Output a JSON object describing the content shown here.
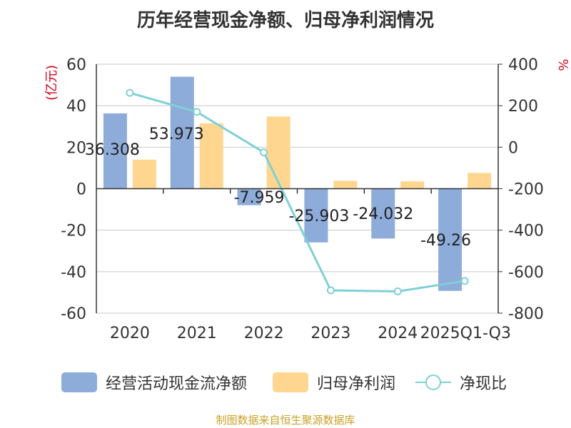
{
  "colors": {
    "bar1": "#8eacd9",
    "bar2": "#fed68f",
    "line": "#7fd0d6",
    "ytitle": "#d0021b",
    "text": "#333333",
    "grid": "#c8c8c8",
    "source": "#c9a227"
  },
  "source_text": "制图数据来自恒生聚源数据库",
  "chart_data": {
    "type": "bar+line",
    "title": "历年经营现金净额、归母净利润情况",
    "categories": [
      "2020",
      "2021",
      "2022",
      "2023",
      "2024",
      "2025Q1-Q3"
    ],
    "y_left": {
      "label": "(亿元)",
      "ylim": [
        -60,
        60
      ],
      "ticks": [
        60,
        40,
        20,
        0,
        -20,
        -40,
        -60
      ]
    },
    "y_right": {
      "label": "%",
      "ylim": [
        -800,
        400
      ],
      "ticks": [
        400,
        200,
        0,
        -200,
        -400,
        -600,
        -800
      ]
    },
    "series": [
      {
        "name": "经营活动现金流净额",
        "kind": "bar",
        "axis": "left",
        "values": [
          36.308,
          53.973,
          -7.959,
          -25.903,
          -24.032,
          -49.26
        ],
        "labels": [
          "36.308",
          "53.973",
          "-7.959",
          "-25.903",
          "-24.032",
          "-49.26"
        ]
      },
      {
        "name": "归母净利润",
        "kind": "bar",
        "axis": "left",
        "values": [
          14.0,
          31.5,
          34.8,
          3.8,
          3.5,
          7.6
        ]
      },
      {
        "name": "净现比",
        "kind": "line",
        "axis": "right",
        "values": [
          262,
          170,
          -25,
          -690,
          -695,
          -645
        ]
      }
    ]
  }
}
